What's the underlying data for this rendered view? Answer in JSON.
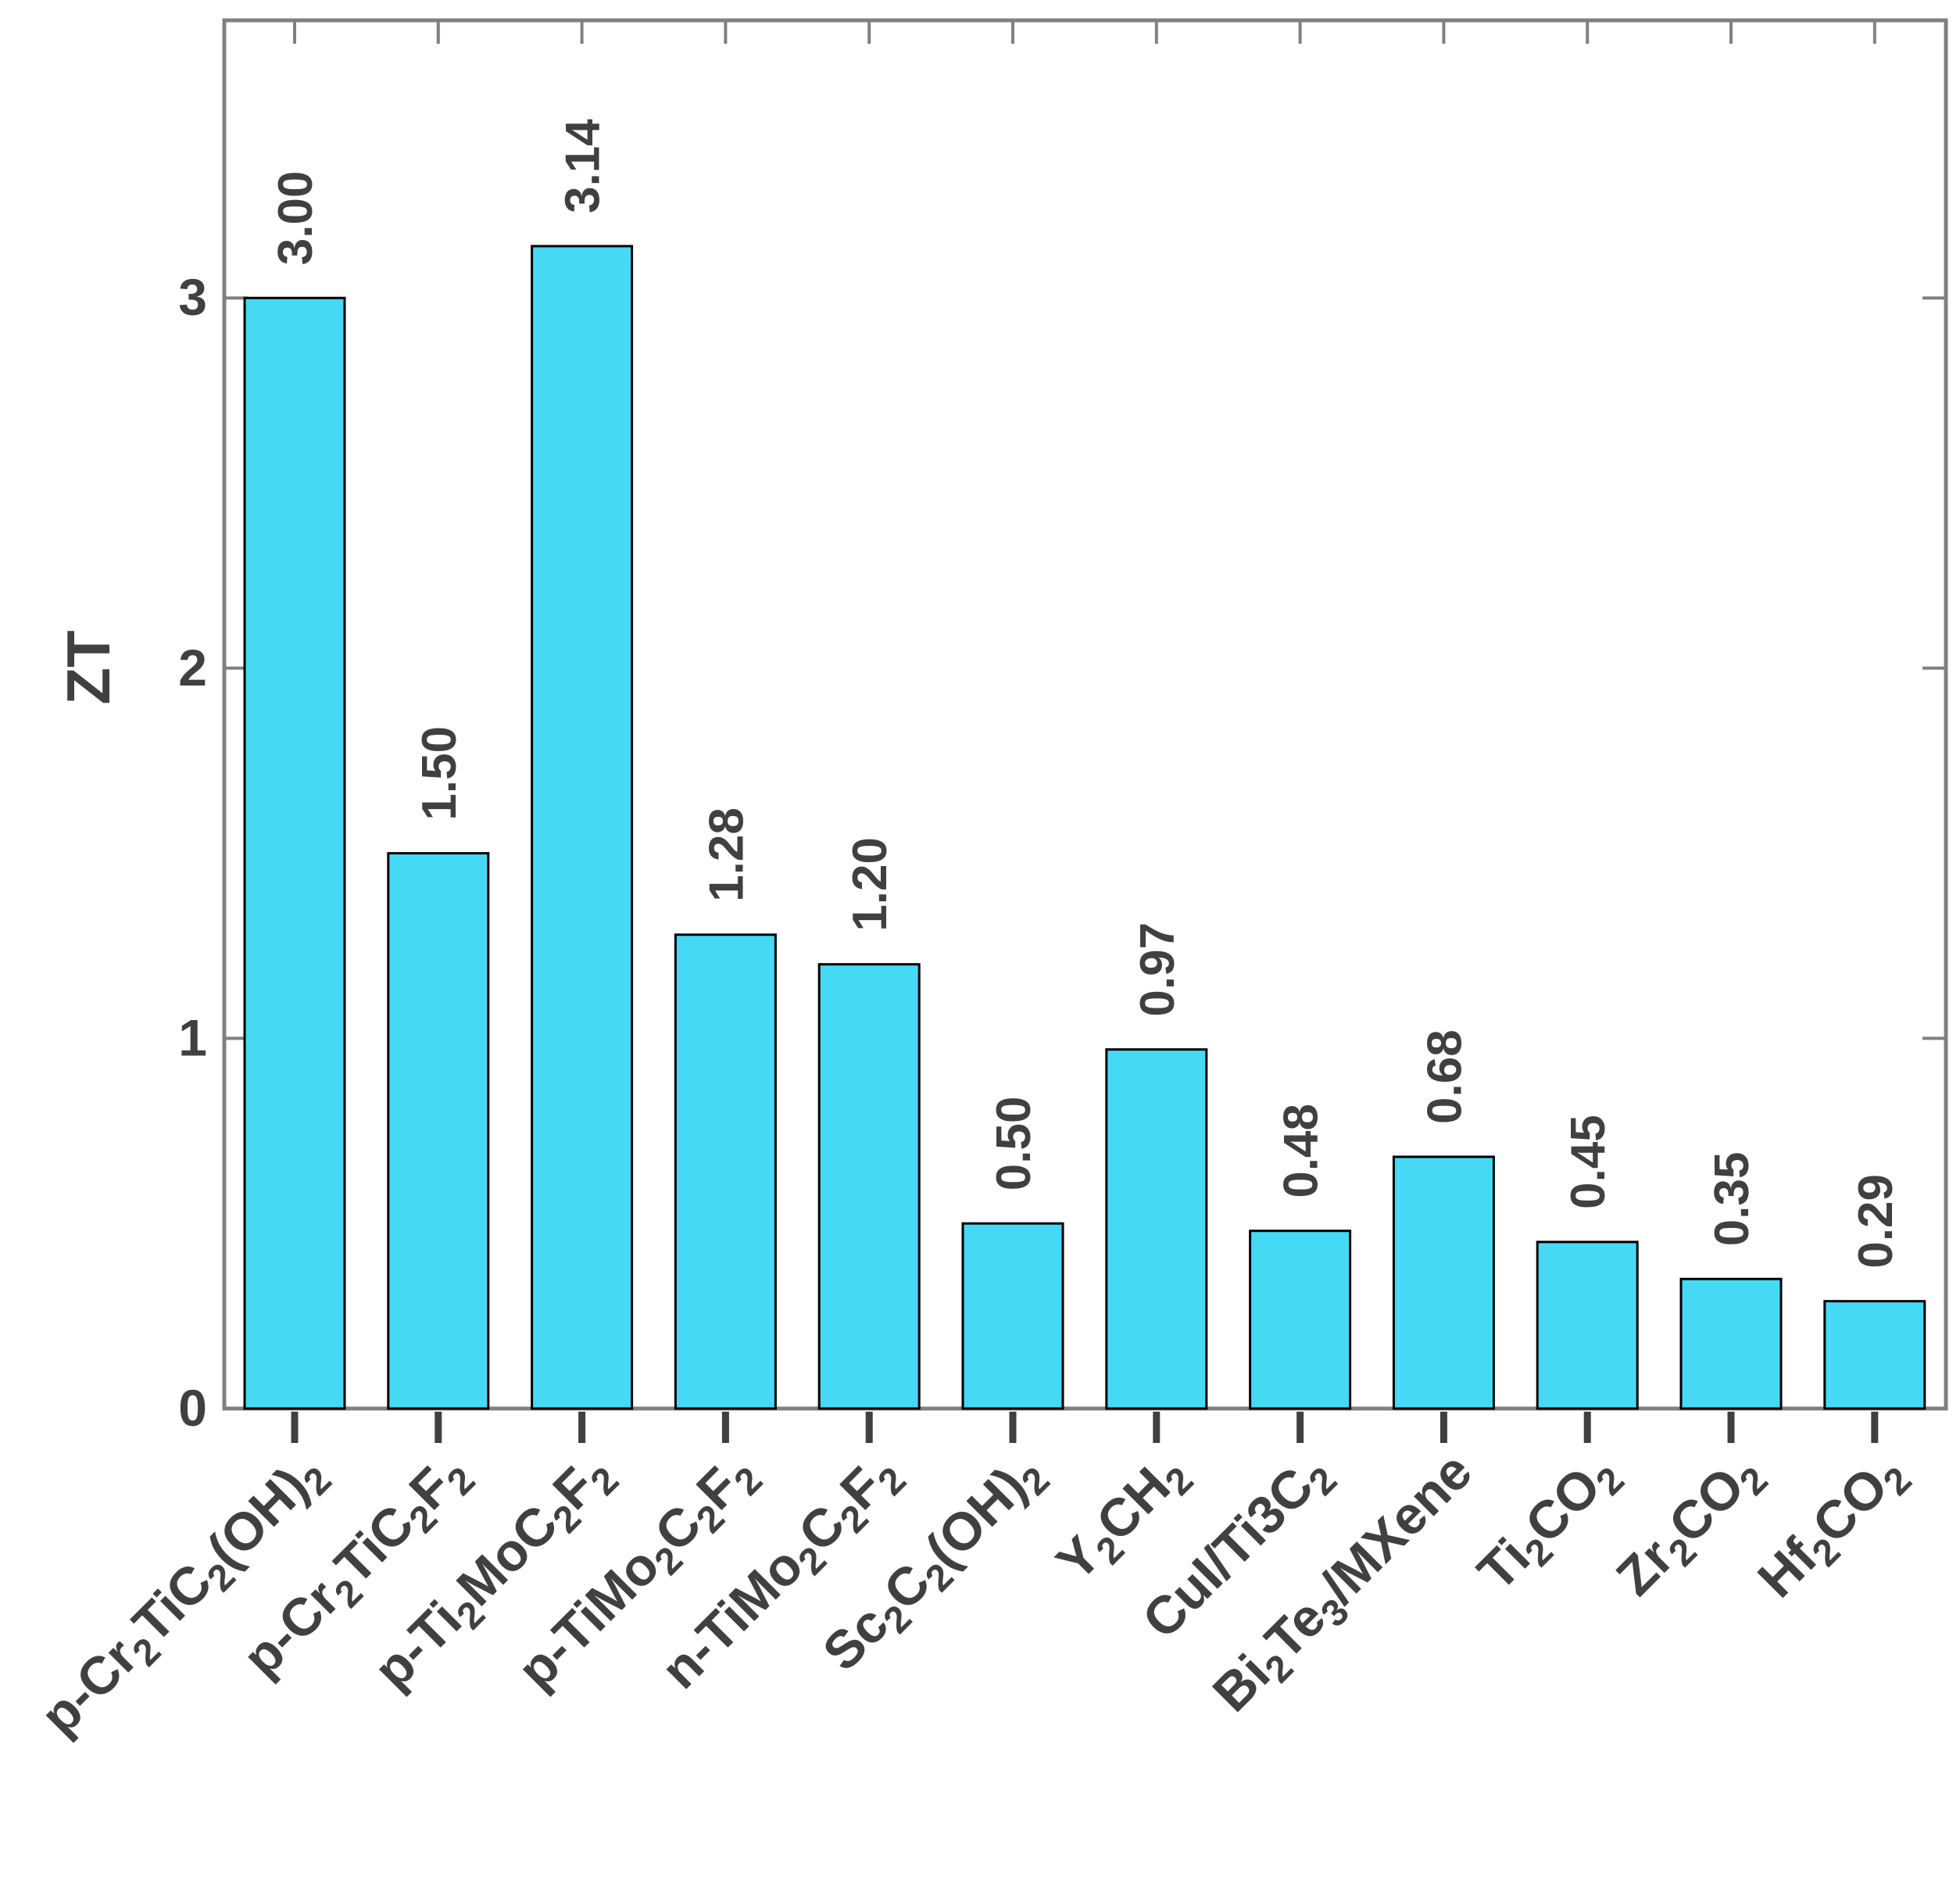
{
  "chart_data": {
    "type": "bar",
    "ylabel": "ZT",
    "xlabel": "",
    "ylim": [
      0,
      3.75
    ],
    "yticks": [
      0,
      1,
      2,
      3
    ],
    "bar_color": "#45d9f5",
    "categories": [
      [
        {
          "t": "p-Cr"
        },
        {
          "t": "2",
          "sub": true
        },
        {
          "t": "TiC"
        },
        {
          "t": "2",
          "sub": true
        },
        {
          "t": "(OH)"
        },
        {
          "t": "2",
          "sub": true
        }
      ],
      [
        {
          "t": "p-Cr"
        },
        {
          "t": "2",
          "sub": true
        },
        {
          "t": "TiC"
        },
        {
          "t": "2",
          "sub": true
        },
        {
          "t": "F"
        },
        {
          "t": "2",
          "sub": true
        }
      ],
      [
        {
          "t": "p-Ti"
        },
        {
          "t": "2",
          "sub": true
        },
        {
          "t": "MoC"
        },
        {
          "t": "2",
          "sub": true
        },
        {
          "t": "F"
        },
        {
          "t": "2",
          "sub": true
        }
      ],
      [
        {
          "t": "p-TiMo"
        },
        {
          "t": "2",
          "sub": true
        },
        {
          "t": "C"
        },
        {
          "t": "2",
          "sub": true
        },
        {
          "t": "F"
        },
        {
          "t": "2",
          "sub": true
        }
      ],
      [
        {
          "t": "n-TiMo"
        },
        {
          "t": "2",
          "sub": true
        },
        {
          "t": "C"
        },
        {
          "t": "2",
          "sub": true
        },
        {
          "t": "F"
        },
        {
          "t": "2",
          "sub": true
        }
      ],
      [
        {
          "t": "Sc"
        },
        {
          "t": "2",
          "sub": true
        },
        {
          "t": "C"
        },
        {
          "t": "2",
          "sub": true
        },
        {
          "t": "(OH)"
        },
        {
          "t": "2",
          "sub": true
        }
      ],
      [
        {
          "t": "Y"
        },
        {
          "t": "2",
          "sub": true
        },
        {
          "t": "CH"
        },
        {
          "t": "2",
          "sub": true
        }
      ],
      [
        {
          "t": "CuI/Ti3C"
        },
        {
          "t": "2",
          "sub": true
        }
      ],
      [
        {
          "t": "Bi"
        },
        {
          "t": "2",
          "sub": true
        },
        {
          "t": "Te"
        },
        {
          "t": "3",
          "sub": true
        },
        {
          "t": "/MXene"
        }
      ],
      [
        {
          "t": "Ti"
        },
        {
          "t": "2",
          "sub": true
        },
        {
          "t": "CO"
        },
        {
          "t": "2",
          "sub": true
        }
      ],
      [
        {
          "t": "Zr"
        },
        {
          "t": "2",
          "sub": true
        },
        {
          "t": "CO"
        },
        {
          "t": "2",
          "sub": true
        }
      ],
      [
        {
          "t": "Hf"
        },
        {
          "t": "2",
          "sub": true
        },
        {
          "t": "CO"
        },
        {
          "t": "2",
          "sub": true
        }
      ]
    ],
    "values": [
      3.0,
      1.5,
      3.14,
      1.28,
      1.2,
      0.5,
      0.97,
      0.48,
      0.68,
      0.45,
      0.35,
      0.29
    ],
    "value_labels": [
      "3.00",
      "1.50",
      "3.14",
      "1.28",
      "1.20",
      "0.50",
      "0.97",
      "0.48",
      "0.68",
      "0.45",
      "0.35",
      "0.29"
    ],
    "grid": false,
    "legend": "none"
  }
}
